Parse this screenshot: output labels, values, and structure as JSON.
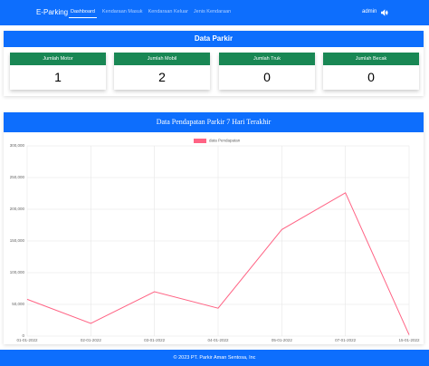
{
  "navbar": {
    "brand": "E-Parking",
    "links": [
      "Dashboard",
      "Kendaraan Masuk",
      "Kendaraan Keluar",
      "Jenis Kendaraan"
    ],
    "user": "admin"
  },
  "summary": {
    "title": "Data Parkir",
    "cards": [
      {
        "label": "Jumlah Motor",
        "value": 1
      },
      {
        "label": "Jumlah Mobil",
        "value": 2
      },
      {
        "label": "Jumlah Truk",
        "value": 0
      },
      {
        "label": "Jumlah Becak",
        "value": 0
      }
    ]
  },
  "chart_data": {
    "type": "line",
    "title": "Data Pendapatan Parkir 7 Hari Terakhir",
    "categories": [
      "01-01-2022",
      "02-01-2022",
      "03-01-2022",
      "04-01-2022",
      "05-01-2022",
      "07-01-2022",
      "15-01-2022"
    ],
    "series": [
      {
        "name": "data Pendapatan",
        "color": "#ff6384",
        "values": [
          58000,
          20000,
          70000,
          44000,
          168000,
          226000,
          2000
        ]
      }
    ],
    "ylim": [
      0,
      300000
    ],
    "yticks": [
      0,
      {
        "value": 50000,
        "label": "50,000"
      },
      {
        "value": 100000,
        "label": "100,000"
      },
      {
        "value": 150000,
        "label": "150,000"
      },
      {
        "value": 200000,
        "label": "200,000"
      },
      {
        "value": 250000,
        "label": "250,000"
      },
      {
        "value": 300000,
        "label": "300,000"
      }
    ],
    "grid": true
  },
  "footer": "© 2023 PT. Parkir Aman Sentosa, Inc"
}
